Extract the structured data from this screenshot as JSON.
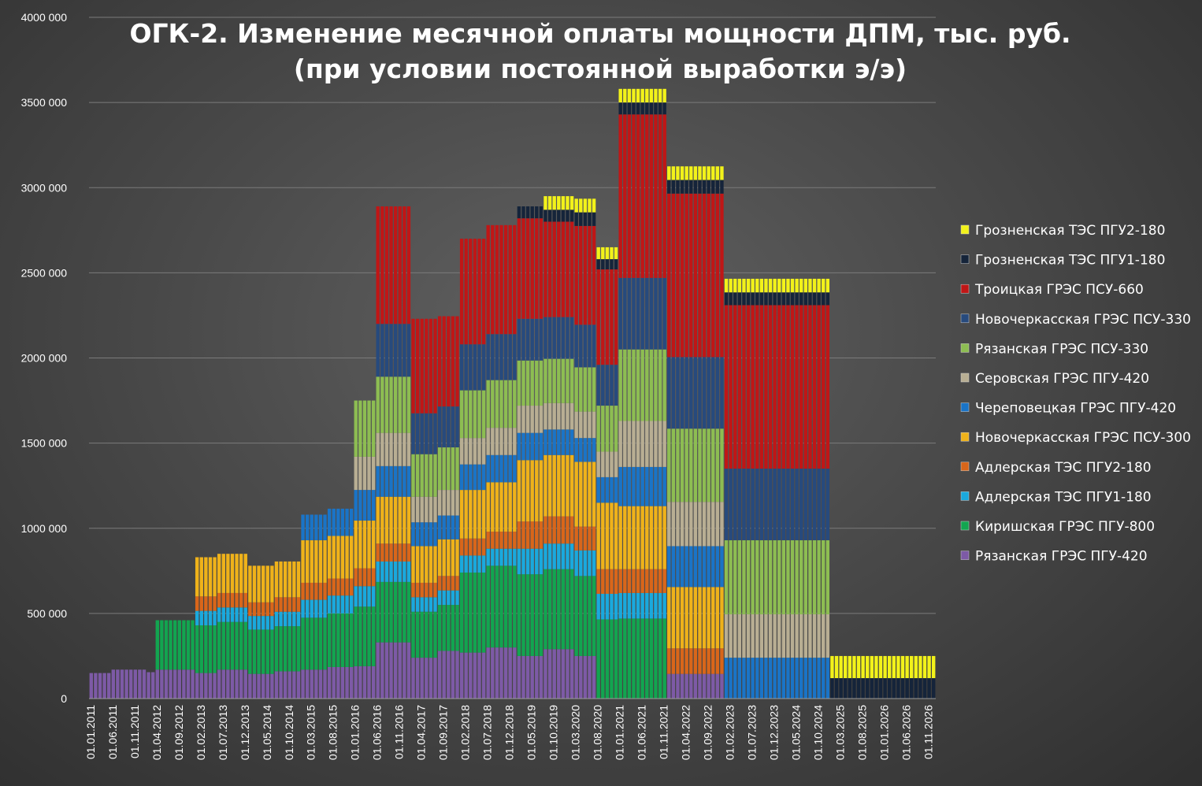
{
  "chart_data": {
    "type": "bar",
    "stacked": true,
    "title": "ОГК-2. Изменение месячной оплаты мощности ДПМ, тыс. руб.",
    "subtitle": "(при условии постоянной выработки э/э)",
    "xlabel": "",
    "ylabel": "",
    "ylim": [
      0,
      4000000
    ],
    "y_ticks": [
      "0",
      "500 000",
      "1000 000",
      "1500 000",
      "2000 000",
      "2500 000",
      "3000 000",
      "3500 000",
      "4000 000"
    ],
    "x_ticks": [
      "01.01.2011",
      "01.06.2011",
      "01.11.2011",
      "01.04.2012",
      "01.09.2012",
      "01.02.2013",
      "01.07.2013",
      "01.12.2013",
      "01.05.2014",
      "01.10.2014",
      "01.03.2015",
      "01.08.2015",
      "01.01.2016",
      "01.06.2016",
      "01.11.2016",
      "01.04.2017",
      "01.09.2017",
      "01.02.2018",
      "01.07.2018",
      "01.12.2018",
      "01.05.2019",
      "01.10.2019",
      "01.03.2020",
      "01.08.2020",
      "01.01.2021",
      "01.06.2021",
      "01.11.2021",
      "01.04.2022",
      "01.09.2022",
      "01.02.2023",
      "01.07.2023",
      "01.12.2023",
      "01.05.2024",
      "01.10.2024",
      "01.03.2025",
      "01.08.2025",
      "01.01.2026",
      "01.06.2026",
      "01.11.2026"
    ],
    "x_start": "01.01.2011",
    "x_end": "01.12.2026",
    "grid": true,
    "legend_position": "right",
    "series": [
      {
        "name": "Рязанская ГРЭС ПГУ-420",
        "color": "#7d5aa6"
      },
      {
        "name": "Киришская ГРЭС ПГУ-800",
        "color": "#12a550"
      },
      {
        "name": "Адлерская ТЭС ПГУ1-180",
        "color": "#1aa9dd"
      },
      {
        "name": "Адлерская ТЭС ПГУ2-180",
        "color": "#d9661a"
      },
      {
        "name": "Новочеркасская ГРЭС ПСУ-300",
        "color": "#efb21a"
      },
      {
        "name": "Череповецкая ГРЭС ПГУ-420",
        "color": "#1a74c7"
      },
      {
        "name": "Серовская ГРЭС ПГУ-420",
        "color": "#b8ae93"
      },
      {
        "name": "Рязанская ГРЭС ПСУ-330",
        "color": "#8dbd52"
      },
      {
        "name": "Новочеркасская ГРЭС ПСУ-330",
        "color": "#274a7d"
      },
      {
        "name": "Троицкая ГРЭС ПСУ-660",
        "color": "#c01616"
      },
      {
        "name": "Грозненская ТЭС ПГУ1-180",
        "color": "#15243a"
      },
      {
        "name": "Грозненская ТЭС ПГУ2-180",
        "color": "#f2f21a"
      }
    ],
    "periods": [
      {
        "from": "01.01.2011",
        "to": "01.05.2011",
        "values": [
          150000,
          0,
          0,
          0,
          0,
          0,
          0,
          0,
          0,
          0,
          0,
          0
        ]
      },
      {
        "from": "01.06.2011",
        "to": "01.01.2012",
        "values": [
          170000,
          0,
          0,
          0,
          0,
          0,
          0,
          0,
          0,
          0,
          0,
          0
        ]
      },
      {
        "from": "01.02.2012",
        "to": "01.03.2012",
        "values": [
          155000,
          0,
          0,
          0,
          0,
          0,
          0,
          0,
          0,
          0,
          0,
          0
        ]
      },
      {
        "from": "01.04.2012",
        "to": "01.12.2012",
        "values": [
          170000,
          290000,
          0,
          0,
          0,
          0,
          0,
          0,
          0,
          0,
          0,
          0
        ]
      },
      {
        "from": "01.01.2013",
        "to": "01.05.2013",
        "values": [
          150000,
          280000,
          85000,
          85000,
          230000,
          0,
          0,
          0,
          0,
          0,
          0,
          0
        ]
      },
      {
        "from": "01.06.2013",
        "to": "01.12.2013",
        "values": [
          170000,
          280000,
          85000,
          85000,
          230000,
          0,
          0,
          0,
          0,
          0,
          0,
          0
        ]
      },
      {
        "from": "01.01.2014",
        "to": "01.06.2014",
        "values": [
          145000,
          260000,
          80000,
          80000,
          215000,
          0,
          0,
          0,
          0,
          0,
          0,
          0
        ]
      },
      {
        "from": "01.07.2014",
        "to": "01.12.2014",
        "values": [
          160000,
          265000,
          85000,
          85000,
          210000,
          0,
          0,
          0,
          0,
          0,
          0,
          0
        ]
      },
      {
        "from": "01.01.2015",
        "to": "01.06.2015",
        "values": [
          170000,
          305000,
          105000,
          100000,
          250000,
          150000,
          0,
          0,
          0,
          0,
          0,
          0
        ]
      },
      {
        "from": "01.07.2015",
        "to": "01.12.2015",
        "values": [
          185000,
          315000,
          105000,
          100000,
          250000,
          160000,
          0,
          0,
          0,
          0,
          0,
          0
        ]
      },
      {
        "from": "01.01.2016",
        "to": "01.05.2016",
        "values": [
          190000,
          350000,
          120000,
          105000,
          280000,
          180000,
          195000,
          330000,
          0,
          0,
          0,
          0
        ]
      },
      {
        "from": "01.06.2016",
        "to": "01.01.2017",
        "values": [
          330000,
          355000,
          120000,
          105000,
          275000,
          180000,
          195000,
          330000,
          310000,
          690000,
          0,
          0
        ]
      },
      {
        "from": "01.02.2017",
        "to": "01.07.2017",
        "values": [
          240000,
          270000,
          85000,
          85000,
          215000,
          140000,
          150000,
          250000,
          240000,
          555000,
          0,
          0
        ]
      },
      {
        "from": "01.08.2017",
        "to": "01.12.2017",
        "values": [
          280000,
          270000,
          85000,
          85000,
          215000,
          140000,
          150000,
          250000,
          240000,
          530000,
          0,
          0
        ]
      },
      {
        "from": "01.01.2018",
        "to": "01.06.2018",
        "values": [
          270000,
          470000,
          100000,
          100000,
          285000,
          150000,
          155000,
          280000,
          270000,
          620000,
          0,
          0
        ]
      },
      {
        "from": "01.07.2018",
        "to": "01.01.2019",
        "values": [
          300000,
          480000,
          100000,
          100000,
          290000,
          160000,
          160000,
          280000,
          270000,
          640000,
          0,
          0
        ]
      },
      {
        "from": "01.02.2019",
        "to": "01.07.2019",
        "values": [
          250000,
          480000,
          150000,
          160000,
          360000,
          160000,
          160000,
          265000,
          245000,
          590000,
          70000,
          0
        ]
      },
      {
        "from": "01.08.2019",
        "to": "01.02.2020",
        "values": [
          290000,
          470000,
          150000,
          160000,
          360000,
          150000,
          155000,
          260000,
          245000,
          560000,
          70000,
          80000
        ]
      },
      {
        "from": "01.03.2020",
        "to": "01.07.2020",
        "values": [
          250000,
          470000,
          150000,
          140000,
          380000,
          140000,
          155000,
          260000,
          250000,
          580000,
          80000,
          80000
        ]
      },
      {
        "from": "01.08.2020",
        "to": "01.12.2020",
        "values": [
          0,
          465000,
          150000,
          145000,
          390000,
          150000,
          150000,
          270000,
          240000,
          560000,
          60000,
          70000
        ]
      },
      {
        "from": "01.01.2021",
        "to": "01.11.2021",
        "values": [
          0,
          470000,
          150000,
          140000,
          370000,
          230000,
          270000,
          420000,
          420000,
          960000,
          70000,
          80000
        ]
      },
      {
        "from": "01.12.2021",
        "to": "01.12.2022",
        "values": [
          145000,
          0,
          0,
          150000,
          360000,
          240000,
          260000,
          430000,
          420000,
          960000,
          80000,
          80000
        ]
      },
      {
        "from": "01.01.2023",
        "to": "01.12.2024",
        "values": [
          0,
          0,
          0,
          0,
          0,
          240000,
          255000,
          435000,
          420000,
          960000,
          75000,
          80000
        ]
      },
      {
        "from": "01.01.2025",
        "to": "01.12.2026",
        "values": [
          0,
          0,
          0,
          0,
          0,
          0,
          0,
          0,
          0,
          0,
          120000,
          130000
        ]
      }
    ]
  }
}
